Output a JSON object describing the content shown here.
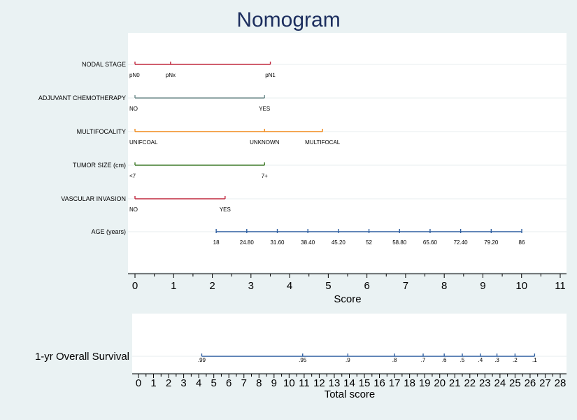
{
  "chart_data": {
    "type": "nomogram",
    "title": "Nomogram",
    "score_axis": {
      "label": "Score",
      "ticks": [
        0,
        1,
        2,
        3,
        4,
        5,
        6,
        7,
        8,
        9,
        10,
        11
      ],
      "range": [
        0,
        11
      ]
    },
    "variables": [
      {
        "name": "NODAL STAGE",
        "color": "#c0283f",
        "levels": [
          {
            "label": "pN0",
            "score": 0
          },
          {
            "label": "pNx",
            "score": 0.92
          },
          {
            "label": "pN1",
            "score": 3.5
          }
        ]
      },
      {
        "name": "ADJUVANT CHEMOTHERAPY",
        "color": "#6e8b8c",
        "levels": [
          {
            "label": "NO",
            "score": 0
          },
          {
            "label": "YES",
            "score": 3.35
          }
        ]
      },
      {
        "name": "MULTIFOCALITY",
        "color": "#f08a1c",
        "levels": [
          {
            "label": "UNIFCOAL",
            "score": 0
          },
          {
            "label": "UNKNOWN",
            "score": 3.35
          },
          {
            "label": "MULTIFOCAL",
            "score": 4.85
          }
        ]
      },
      {
        "name": "TUMOR SIZE (cm)",
        "color": "#3f7a2a",
        "levels": [
          {
            "label": "<7",
            "score": 0
          },
          {
            "label": "7+",
            "score": 3.35
          }
        ]
      },
      {
        "name": "VASCULAR INVASION",
        "color": "#c0283f",
        "levels": [
          {
            "label": "NO",
            "score": 0
          },
          {
            "label": "YES",
            "score": 2.33
          }
        ]
      },
      {
        "name": "AGE (years)",
        "color": "#2f5fa0",
        "levels": [
          {
            "label": "18",
            "score": 2.1
          },
          {
            "label": "24.80",
            "score": 2.89
          },
          {
            "label": "31.60",
            "score": 3.68
          },
          {
            "label": "38.40",
            "score": 4.47
          },
          {
            "label": "45.20",
            "score": 5.26
          },
          {
            "label": "52",
            "score": 6.05
          },
          {
            "label": "58.80",
            "score": 6.84
          },
          {
            "label": "65.60",
            "score": 7.63
          },
          {
            "label": "72.40",
            "score": 8.42
          },
          {
            "label": "79.20",
            "score": 9.21
          },
          {
            "label": "86",
            "score": 10.0
          }
        ]
      }
    ],
    "total_axis": {
      "label": "Total score",
      "ticks": [
        0,
        1,
        2,
        3,
        4,
        5,
        6,
        7,
        8,
        9,
        10,
        11,
        12,
        13,
        14,
        15,
        16,
        17,
        18,
        19,
        20,
        21,
        22,
        23,
        24,
        25,
        26,
        27,
        28
      ],
      "range": [
        0,
        28
      ]
    },
    "survival": {
      "name": "1-yr Overall Survival",
      "color": "#2f5fa0",
      "points": [
        {
          "label": ".99",
          "total": 4.2
        },
        {
          "label": ".95",
          "total": 10.9
        },
        {
          "label": ".9",
          "total": 13.9
        },
        {
          "label": ".8",
          "total": 17.0
        },
        {
          "label": ".7",
          "total": 18.9
        },
        {
          "label": ".6",
          "total": 20.3
        },
        {
          "label": ".5",
          "total": 21.5
        },
        {
          "label": ".4",
          "total": 22.7
        },
        {
          "label": ".3",
          "total": 23.8
        },
        {
          "label": ".2",
          "total": 25.0
        },
        {
          "label": ".1",
          "total": 26.3
        }
      ]
    }
  }
}
